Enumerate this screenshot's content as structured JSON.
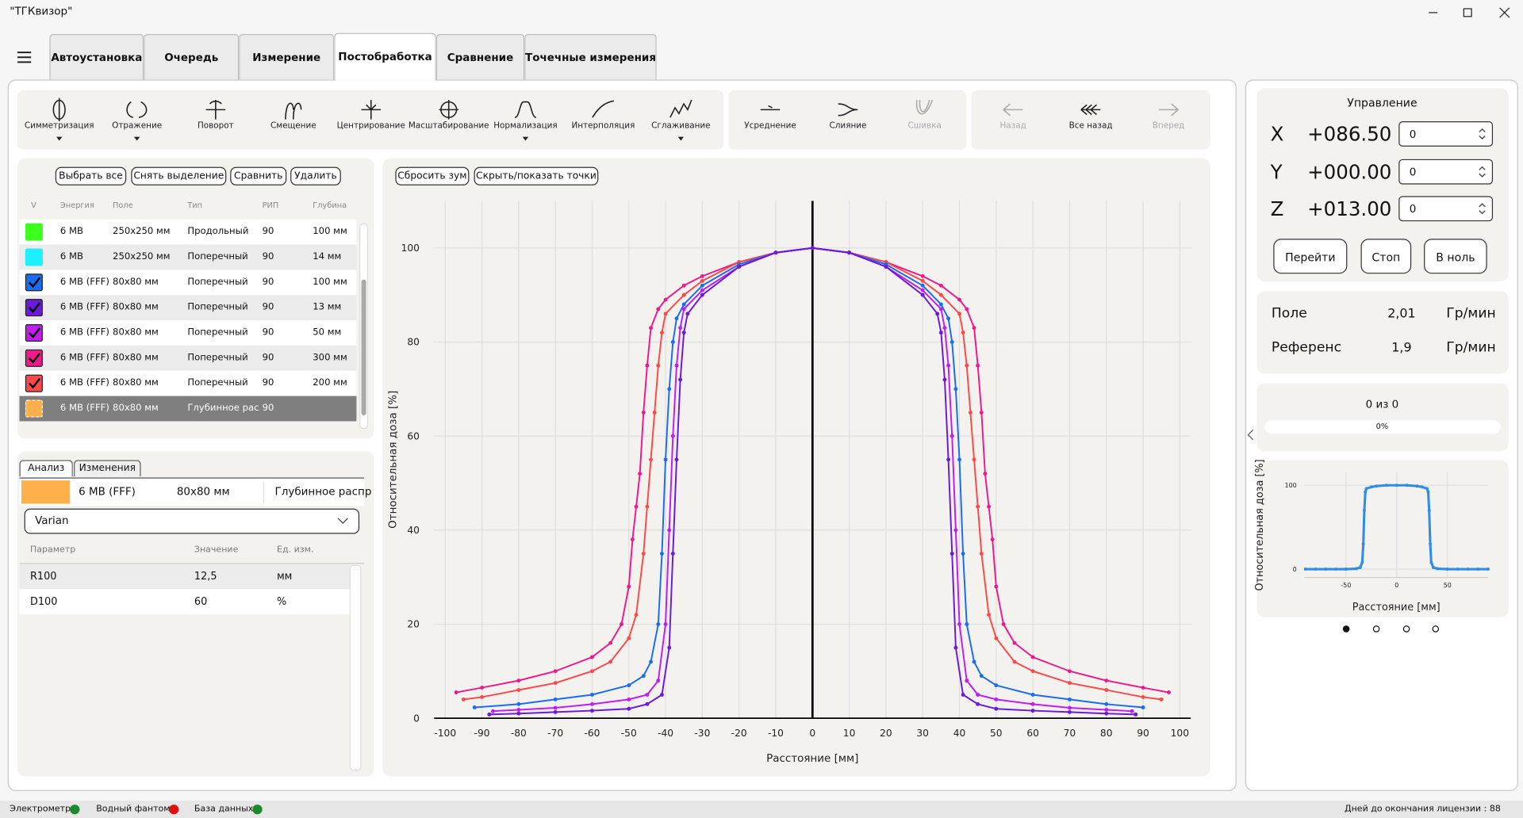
{
  "window": {
    "title": "\"ТГКвизор\""
  },
  "tabs": [
    "Автоустановка",
    "Очередь",
    "Измерение",
    "Постобработка",
    "Сравнение",
    "Точечные измерения"
  ],
  "active_tab": 3,
  "toolbar": {
    "tools": [
      "Симметризация",
      "Отражение",
      "Поворот",
      "Смещение",
      "Центрирование",
      "Масштабирование",
      "Нормализация",
      "Интерполяция",
      "Сглаживание"
    ],
    "menus": [
      0,
      1,
      6,
      8
    ],
    "merge": [
      "Усреднение",
      "Слияние",
      "Сшивка"
    ],
    "merge_disabled": [
      2
    ],
    "history": [
      "Назад",
      "Все назад",
      "Вперед"
    ],
    "history_disabled": [
      0,
      2
    ]
  },
  "list": {
    "buttons": [
      "Выбрать все",
      "Снять выделение",
      "Сравнить",
      "Удалить"
    ],
    "columns": [
      "V",
      "Энергия",
      "Поле",
      "Тип",
      "РИП",
      "Глубина"
    ],
    "selected_row": 7,
    "rows": [
      {
        "color": "#3cff1e",
        "checked": false,
        "cells": [
          "6 МВ",
          "250x250 мм",
          "Продольный",
          "90",
          "100 мм"
        ]
      },
      {
        "color": "#1ef0ff",
        "checked": false,
        "cells": [
          "6 МВ",
          "250x250 мм",
          "Поперечный",
          "90",
          "14 мм"
        ]
      },
      {
        "color": "#1a6cf0",
        "checked": true,
        "cells": [
          "6 МВ (FFF)",
          "80x80 мм",
          "Поперечный",
          "90",
          "100 мм"
        ]
      },
      {
        "color": "#6a1ad8",
        "checked": true,
        "cells": [
          "6 МВ (FFF)",
          "80x80 мм",
          "Поперечный",
          "90",
          "13 мм"
        ]
      },
      {
        "color": "#c21cf0",
        "checked": true,
        "cells": [
          "6 МВ (FFF)",
          "80x80 мм",
          "Поперечный",
          "90",
          "50 мм"
        ]
      },
      {
        "color": "#f0198c",
        "checked": true,
        "cells": [
          "6 МВ (FFF)",
          "80x80 мм",
          "Поперечный",
          "90",
          "300 мм"
        ]
      },
      {
        "color": "#ff4848",
        "checked": true,
        "cells": [
          "6 МВ (FFF)",
          "80x80 мм",
          "Поперечный",
          "90",
          "200 мм"
        ]
      },
      {
        "color": "#ffb04a",
        "checked": false,
        "cells": [
          "6 МВ (FFF)",
          "80x80 мм",
          "Глубинное рас",
          "90"
        ]
      }
    ]
  },
  "analysis": {
    "tabs": [
      "Анализ",
      "Изменения"
    ],
    "active_tab": 0,
    "selected": {
      "color": "#ffb04a",
      "cells": [
        "6 МВ (FFF)",
        "80x80 мм",
        "Глубинное распр"
      ]
    },
    "dropdown": "Varian",
    "columns": [
      "Параметр",
      "Значение",
      "Ед. изм."
    ],
    "rows": [
      [
        "R100",
        "12,5",
        "мм"
      ],
      [
        "D100",
        "60",
        "%"
      ]
    ]
  },
  "chart_toolbar": [
    "Сбросить зум",
    "Скрыть/показать точки"
  ],
  "chart_data": [
    {
      "type": "line",
      "xlabel": "Расстояние [мм]",
      "ylabel": "Относительная доза [%]",
      "xlim": [
        -103,
        103
      ],
      "ylim": [
        0,
        110
      ],
      "xticks": [
        -100,
        -90,
        -80,
        -70,
        -60,
        -50,
        -40,
        -30,
        -20,
        -10,
        0,
        10,
        20,
        30,
        40,
        50,
        60,
        70,
        80,
        90,
        100
      ],
      "yticks": [
        0,
        20,
        40,
        60,
        80,
        100
      ],
      "grid": true,
      "zero_line": true,
      "markers": true,
      "series": [
        {
          "color": "#f0198c",
          "x": [
            -97,
            -90,
            -80,
            -70,
            -60,
            -55,
            -52,
            -50,
            -49,
            -48,
            -47,
            -46,
            -45,
            -44,
            -42,
            -40,
            -35,
            -30,
            -20,
            -10,
            0,
            10,
            20,
            30,
            35,
            40,
            42,
            44,
            45,
            46,
            47,
            48,
            49,
            50,
            52,
            55,
            60,
            70,
            80,
            90,
            97
          ],
          "values": [
            5.5,
            6.5,
            8,
            10,
            13,
            16,
            20,
            28,
            38,
            45,
            52,
            65,
            75,
            83,
            87,
            89,
            92,
            94,
            97,
            99,
            100,
            99,
            97,
            94,
            92,
            89,
            87,
            83,
            75,
            65,
            52,
            45,
            38,
            28,
            20,
            16,
            13,
            10,
            8,
            6.5,
            5.5
          ]
        },
        {
          "color": "#ff4848",
          "x": [
            -95,
            -90,
            -80,
            -70,
            -60,
            -55,
            -50,
            -48,
            -46,
            -45,
            -44,
            -43,
            -42,
            -41,
            -40,
            -35,
            -30,
            -20,
            -10,
            0,
            10,
            20,
            30,
            35,
            40,
            41,
            42,
            43,
            44,
            45,
            46,
            48,
            50,
            55,
            60,
            70,
            80,
            90,
            95
          ],
          "values": [
            4,
            4.5,
            6,
            7.5,
            10,
            12,
            17,
            22,
            35,
            45,
            55,
            65,
            75,
            82,
            86,
            90,
            93,
            97,
            99,
            100,
            99,
            97,
            93,
            90,
            86,
            82,
            75,
            65,
            55,
            45,
            35,
            22,
            17,
            12,
            10,
            7.5,
            6,
            4.5,
            4
          ]
        },
        {
          "color": "#1a6cf0",
          "x": [
            -92,
            -80,
            -70,
            -60,
            -50,
            -46,
            -44,
            -42,
            -41,
            -40,
            -39,
            -38,
            -37,
            -35,
            -30,
            -20,
            -10,
            0,
            10,
            20,
            30,
            35,
            37,
            38,
            39,
            40,
            41,
            42,
            44,
            46,
            50,
            60,
            70,
            80,
            90
          ],
          "values": [
            2.3,
            3,
            4,
            5,
            7,
            9,
            12,
            20,
            35,
            55,
            70,
            80,
            85,
            88,
            92,
            96.5,
            99,
            100,
            99,
            96.5,
            92,
            88,
            85,
            80,
            70,
            55,
            35,
            20,
            12,
            9,
            7,
            5,
            4,
            3,
            2.3
          ]
        },
        {
          "color": "#c21cf0",
          "x": [
            -87,
            -80,
            -70,
            -60,
            -50,
            -45,
            -42,
            -40,
            -39,
            -38,
            -37,
            -36,
            -35,
            -30,
            -20,
            -10,
            0,
            10,
            20,
            30,
            35,
            36,
            37,
            38,
            39,
            40,
            42,
            45,
            50,
            60,
            70,
            80,
            87
          ],
          "values": [
            1.5,
            1.8,
            2.2,
            3,
            4,
            5,
            8,
            20,
            40,
            60,
            75,
            83,
            87,
            91,
            96,
            99,
            100,
            99,
            96,
            91,
            87,
            83,
            75,
            60,
            40,
            20,
            8,
            5,
            4,
            3,
            2.2,
            1.8,
            1.5
          ]
        },
        {
          "color": "#6a1ad8",
          "x": [
            -88,
            -80,
            -70,
            -60,
            -50,
            -45,
            -41,
            -39,
            -38,
            -37,
            -36,
            -35,
            -34,
            -30,
            -20,
            -10,
            0,
            10,
            20,
            30,
            34,
            35,
            36,
            37,
            38,
            39,
            41,
            45,
            50,
            60,
            70,
            80,
            88
          ],
          "values": [
            0.8,
            1,
            1.3,
            1.6,
            2,
            3,
            5,
            15,
            35,
            55,
            72,
            82,
            86,
            90,
            96,
            99,
            100,
            99,
            96,
            90,
            86,
            82,
            72,
            55,
            35,
            15,
            5,
            3,
            2,
            1.6,
            1.3,
            1,
            0.8
          ]
        }
      ]
    },
    {
      "type": "line",
      "xlabel": "Расстояние [мм]",
      "ylabel": "Относительная доза [%]",
      "xlim": [
        -91,
        90
      ],
      "ylim": [
        -10,
        115
      ],
      "xticks": [
        -50,
        0,
        50
      ],
      "yticks": [
        0,
        100
      ],
      "grid": true,
      "zero_line": false,
      "markers": true,
      "series": [
        {
          "color": "#2f8de6",
          "x": [
            -90,
            -80,
            -70,
            -60,
            -50,
            -40,
            -36,
            -34,
            -33,
            -32,
            -31,
            -30,
            -25,
            -20,
            -10,
            0,
            10,
            20,
            25,
            30,
            31,
            32,
            33,
            34,
            36,
            40,
            50,
            60,
            70,
            80,
            90
          ],
          "values": [
            0,
            0,
            0,
            0,
            0,
            0.5,
            2,
            8,
            30,
            70,
            92,
            96,
            98,
            99,
            100,
            100,
            100,
            99,
            98,
            96,
            92,
            70,
            30,
            8,
            2,
            0.5,
            0,
            0,
            0,
            0,
            0
          ]
        }
      ]
    }
  ],
  "control": {
    "title": "Управление",
    "axes": [
      {
        "label": "X",
        "position": "+086.50",
        "input": "0"
      },
      {
        "label": "Y",
        "position": "+000.00",
        "input": "0"
      },
      {
        "label": "Z",
        "position": "+013.00",
        "input": "0"
      }
    ],
    "buttons": [
      "Перейти",
      "Стоп",
      "В ноль"
    ]
  },
  "doserate": [
    {
      "label": "Поле",
      "value": "2,01",
      "unit": "Гр/мин"
    },
    {
      "label": "Референс",
      "value": "1,9",
      "unit": "Гр/мин"
    }
  ],
  "progress": {
    "count": "0 из 0",
    "percent": "0%"
  },
  "status": {
    "items": [
      {
        "label": "Электрометр",
        "color": "#1a8a2a"
      },
      {
        "label": "Водный фантом",
        "color": "#e01010"
      },
      {
        "label": "База данных",
        "color": "#1a8a2a"
      }
    ],
    "license": "Дней до окончания лицензии : 88"
  }
}
